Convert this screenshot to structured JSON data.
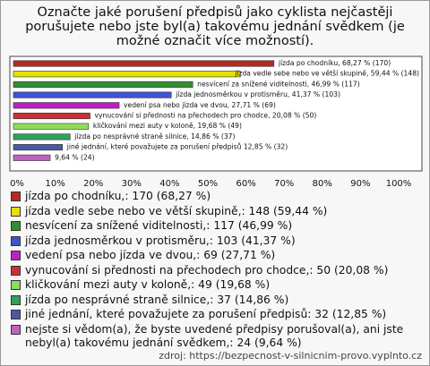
{
  "chart_data": {
    "type": "bar",
    "orientation": "horizontal",
    "title": "Označte jaké porušení předpisů jako cyklista nejčastěji porušujete nebo jste byl(a) takovému jednání svědkem (je možné označit více možností).",
    "values": [
      68.27,
      59.44,
      46.99,
      41.37,
      27.71,
      20.08,
      19.68,
      14.86,
      12.85,
      9.64
    ],
    "value_labels": [
      "jízda po chodníku, 68,27 % (170)",
      "jízda vedle sebe nebo ve větší skupině, 59,44 % (148)",
      "nesvícení za snížené viditelnosti, 46,99 % (117)",
      "jízda jednosměrkou v protisměru, 41,37 % (103)",
      "vedení psa nebo jízda ve dvou, 27,71 % (69)",
      "vynucování si přednosti na přechodech pro chodce, 20,08 % (50)",
      "kličkování mezi auty v koloně, 19,68 % (49)",
      "jízda po nesprávné straně silnice, 14,86 % (37)",
      "jiné jednání, které považujete za porušení předpisů 12,85 % (32)",
      "9,64 % (24)"
    ],
    "colors": [
      "#b52a1e",
      "#e8e000",
      "#2f8f2f",
      "#4052d0",
      "#c020c0",
      "#c83232",
      "#8fdc5a",
      "#2fa060",
      "#4a5aa0",
      "#c060c0"
    ],
    "legend_labels": [
      "jízda po chodníku,: 170 (68,27 %)",
      "jízda vedle sebe nebo ve větší skupině,: 148 (59,44 %)",
      "nesvícení za snížené viditelnosti,: 117 (46,99 %)",
      "jízda jednosměrkou v protisměru,: 103 (41,37 %)",
      "vedení psa nebo jízda ve dvou,: 69 (27,71 %)",
      "vynucování si přednosti na přechodech pro chodce,: 50 (20,08 %)",
      "kličkování mezi auty v koloně,: 49 (19,68 %)",
      "jízda po nesprávné straně silnice,: 37 (14,86 %)",
      "jiné jednání, které považujete za porušení předpisů: 32 (12,85 %)",
      "nejste si vědom(a), že byste uvedené předpisy porušoval(a), ani jste nebyl(a) takovému jednání svědkem,: 24 (9,64 %)"
    ],
    "xlim": [
      0,
      100
    ],
    "xticks": [
      {
        "value": 0,
        "label": "0%"
      },
      {
        "value": 10,
        "label": "10%"
      },
      {
        "value": 20,
        "label": "20%"
      },
      {
        "value": 30,
        "label": "30%"
      },
      {
        "value": 40,
        "label": "40%"
      },
      {
        "value": 50,
        "label": "50%"
      },
      {
        "value": 60,
        "label": "60%"
      },
      {
        "value": 70,
        "label": "70%"
      },
      {
        "value": 80,
        "label": "80%"
      },
      {
        "value": 90,
        "label": "90%"
      },
      {
        "value": 100,
        "label": "100%"
      }
    ],
    "source": "zdroj: https://bezpecnost-v-silnicnim-provo.vyplnto.cz"
  }
}
